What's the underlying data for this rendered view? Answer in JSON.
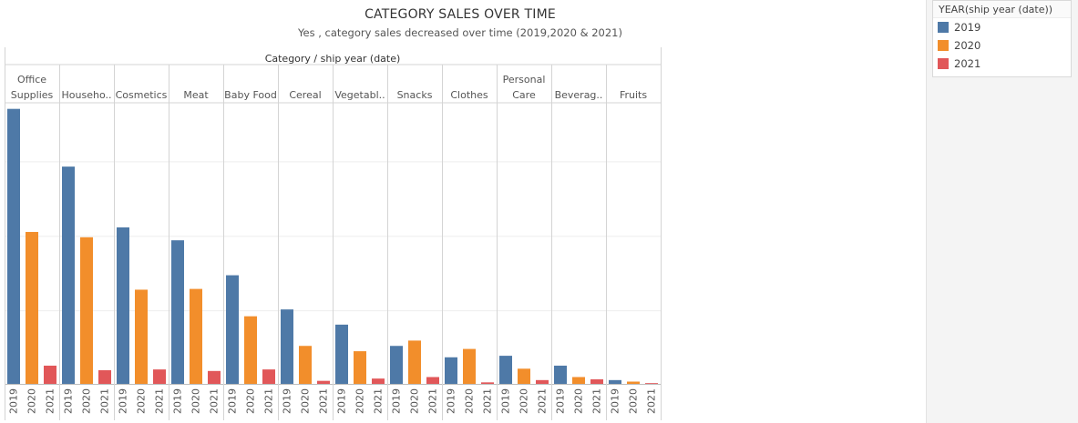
{
  "chart_data": {
    "type": "bar",
    "title": "CATEGORY SALES OVER TIME",
    "subtitle": "Yes , category sales decreased over time (2019,2020 & 2021)",
    "header_label": "Category / ship year (date)",
    "categories": [
      {
        "label": [
          "Office",
          "Supplies"
        ]
      },
      {
        "label": [
          "Househo.."
        ]
      },
      {
        "label": [
          "Cosmetics"
        ]
      },
      {
        "label": [
          "Meat"
        ]
      },
      {
        "label": [
          "Baby Food"
        ]
      },
      {
        "label": [
          "Cereal"
        ]
      },
      {
        "label": [
          "Vegetabl.."
        ]
      },
      {
        "label": [
          "Snacks"
        ]
      },
      {
        "label": [
          "Clothes"
        ]
      },
      {
        "label": [
          "Personal",
          "Care"
        ]
      },
      {
        "label": [
          "Beverag.."
        ]
      },
      {
        "label": [
          "Fruits"
        ]
      }
    ],
    "years": [
      "2019",
      "2020",
      "2021"
    ],
    "series": [
      {
        "name": "2019",
        "values": [
          362,
          286,
          206,
          189,
          143,
          98,
          78,
          50,
          35,
          37,
          24,
          5
        ]
      },
      {
        "name": "2020",
        "values": [
          200,
          193,
          124,
          125,
          89,
          50,
          43,
          57,
          46,
          20,
          9,
          3
        ]
      },
      {
        "name": "2021",
        "values": [
          24,
          18,
          19,
          17,
          19,
          4,
          7,
          9,
          2,
          5,
          6,
          1
        ]
      }
    ],
    "ylim": [
      0,
      370
    ],
    "grid": true,
    "y_axis_labels": false,
    "legend": {
      "title": "YEAR(ship year (date))",
      "placement": "top-right",
      "items": [
        {
          "label": "2019",
          "color": "#4e79a7"
        },
        {
          "label": "2020",
          "color": "#f28e2b"
        },
        {
          "label": "2021",
          "color": "#e15759"
        }
      ]
    }
  }
}
